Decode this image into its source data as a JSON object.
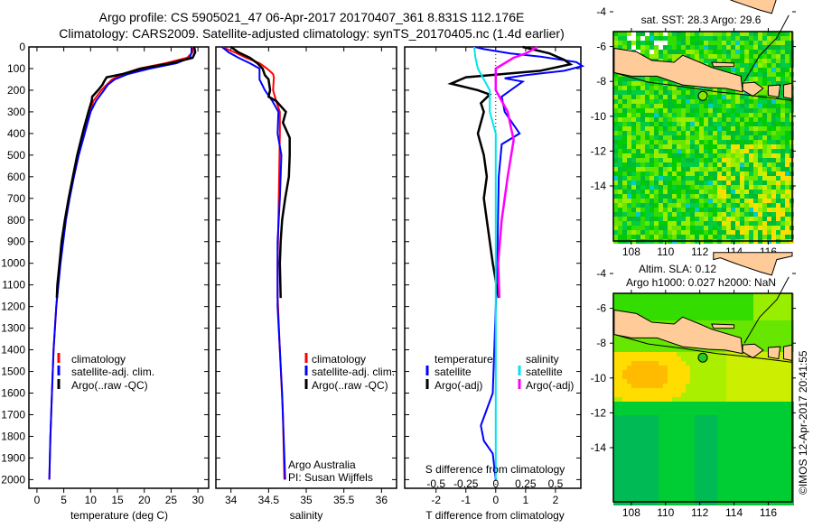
{
  "title_line1": "Argo profile: CS 5905021_47 06-Apr-2017 20170407_361 8.831S 112.176E",
  "title_line2": "Climatology: CARS2009. Satellite-adjusted climatology: synTS_20170405.nc (1.4d earlier)",
  "colors": {
    "climatology": "#ff0000",
    "satellite": "#0000ff",
    "argo": "#000000",
    "s_satellite": "#00e5ee",
    "s_argo": "#ff00ff",
    "land": "#ffcc99"
  },
  "chart_data": [
    {
      "type": "line",
      "name": "temperature profile",
      "xlabel": "temperature (deg C)",
      "ylabel": "",
      "xlim": [
        -1.5,
        32
      ],
      "ylim": [
        2040,
        0
      ],
      "xticks": [
        "0",
        "5",
        "10",
        "15",
        "20",
        "25",
        "30"
      ],
      "yticks": [
        "0",
        "100",
        "200",
        "300",
        "400",
        "500",
        "600",
        "700",
        "800",
        "900",
        "1000",
        "1100",
        "1200",
        "1300",
        "1400",
        "1500",
        "1600",
        "1700",
        "1800",
        "1900",
        "2000"
      ],
      "legend": [
        "climatology",
        "satellite-adj. clim.",
        "Argo(..raw -QC)"
      ],
      "series": [
        {
          "name": "climatology",
          "color": "#ff0000",
          "depth": [
            0,
            25,
            50,
            75,
            100,
            125,
            150,
            175,
            200,
            250,
            300,
            400,
            500,
            600,
            700,
            800,
            900,
            1000,
            1100,
            1200,
            1400,
            1600,
            1800,
            2000
          ],
          "values": [
            29,
            29,
            28,
            24,
            19,
            16,
            14,
            13,
            12,
            10.5,
            10,
            8.7,
            7.6,
            6.8,
            6,
            5.3,
            4.8,
            4.3,
            3.9,
            3.6,
            3.1,
            2.8,
            2.5,
            2.3
          ]
        },
        {
          "name": "satellite-adj. clim.",
          "color": "#0000ff",
          "depth": [
            0,
            25,
            50,
            75,
            100,
            125,
            150,
            175,
            200,
            250,
            300,
            400,
            500,
            600,
            700,
            800,
            900,
            1000,
            1100,
            1200,
            1400,
            1600,
            1800,
            2000
          ],
          "values": [
            28.8,
            28.8,
            28.5,
            26,
            21,
            17,
            14.5,
            13.2,
            12.5,
            11,
            10,
            8.9,
            7.8,
            6.9,
            6.1,
            5.4,
            4.9,
            4.4,
            4,
            3.6,
            3.1,
            2.8,
            2.5,
            2.3
          ]
        },
        {
          "name": "Argo(..raw -QC)",
          "color": "#000000",
          "depth": [
            0,
            25,
            50,
            75,
            100,
            125,
            140,
            160,
            175,
            200,
            230,
            250,
            300,
            380,
            400,
            500,
            600,
            700,
            800,
            900,
            1000,
            1100,
            1160
          ],
          "values": [
            29.3,
            29.5,
            29,
            25,
            19.5,
            16,
            13,
            12.5,
            12.2,
            11.4,
            10.3,
            10.2,
            9.6,
            8.7,
            8.5,
            7.5,
            6.7,
            5.9,
            5.2,
            4.6,
            4.2,
            3.8,
            3.7
          ]
        }
      ]
    },
    {
      "type": "line",
      "name": "salinity profile",
      "xlabel": "salinity",
      "xlim": [
        33.8,
        36.2
      ],
      "ylim": [
        2040,
        0
      ],
      "xticks": [
        "34",
        "34.5",
        "35",
        "35.5",
        "36"
      ],
      "legend": [
        "climatology",
        "satellite-adj. clim.",
        "Argo(..raw -QC)"
      ],
      "annotation": [
        "Argo Australia",
        "PI: Susan Wijffels"
      ],
      "series": [
        {
          "name": "climatology",
          "color": "#ff0000",
          "depth": [
            0,
            25,
            50,
            75,
            100,
            125,
            140,
            200,
            250,
            300,
            400,
            600,
            800,
            1000,
            1150,
            1400,
            1700,
            2000
          ],
          "values": [
            33.88,
            34.05,
            34.2,
            34.38,
            34.48,
            34.56,
            34.57,
            34.56,
            34.6,
            34.65,
            34.65,
            34.64,
            34.63,
            34.62,
            34.62,
            34.65,
            34.69,
            34.71
          ]
        },
        {
          "name": "satellite-adj. clim.",
          "color": "#0000ff",
          "depth": [
            0,
            25,
            50,
            75,
            100,
            150,
            200,
            250,
            300,
            400,
            500,
            700,
            900,
            1200,
            1600,
            2000
          ],
          "values": [
            33.88,
            33.97,
            34.1,
            34.25,
            34.38,
            34.38,
            34.45,
            34.55,
            34.63,
            34.62,
            34.67,
            34.65,
            34.62,
            34.62,
            34.68,
            34.72
          ]
        },
        {
          "name": "Argo(..raw -QC)",
          "color": "#000000",
          "depth": [
            0,
            25,
            50,
            75,
            100,
            130,
            150,
            200,
            230,
            250,
            300,
            350,
            420,
            500,
            600,
            700,
            800,
            900,
            1000,
            1160
          ],
          "values": [
            34.0,
            34.1,
            34.25,
            34.35,
            34.42,
            34.45,
            34.5,
            34.52,
            34.5,
            34.6,
            34.73,
            34.69,
            34.78,
            34.78,
            34.77,
            34.72,
            34.68,
            34.66,
            34.65,
            34.66
          ]
        }
      ]
    },
    {
      "type": "line",
      "name": "difference from climatology",
      "xlabel": "T difference from climatology",
      "x2label": "S difference from climatology",
      "xlim": [
        -3.05,
        2.85
      ],
      "ylim": [
        2040,
        0
      ],
      "xticks": [
        "-2",
        "-1",
        "0",
        "1",
        "2"
      ],
      "x2ticks": [
        "-0.5",
        "-0.25",
        "0",
        "0.25",
        "0.5"
      ],
      "legend_temperature": {
        "title": "temperature",
        "items": [
          "satellite",
          "Argo(-adj)"
        ]
      },
      "legend_salinity": {
        "title": "salinity",
        "items": [
          "satellite",
          "Argo(-adj)"
        ]
      },
      "series": [
        {
          "name": "T satellite",
          "color": "#0000ff",
          "unit": "T",
          "depth": [
            0,
            10,
            30,
            45,
            70,
            88,
            110,
            130,
            145,
            160,
            200,
            230,
            300,
            400,
            450,
            600,
            1000,
            1600,
            1750,
            1820,
            1880,
            2000
          ],
          "values": [
            -0.7,
            -0.4,
            0.5,
            1.5,
            2.7,
            2.9,
            2.3,
            1.0,
            0.3,
            0.9,
            0.5,
            0.2,
            0.3,
            0.8,
            0.2,
            0.1,
            0.05,
            -0.1,
            -0.5,
            -0.4,
            -0.1,
            0
          ]
        },
        {
          "name": "T Argo(-adj)",
          "color": "#000000",
          "unit": "T",
          "depth": [
            0,
            30,
            60,
            80,
            110,
            140,
            170,
            200,
            220,
            260,
            300,
            400,
            500,
            600,
            700,
            800,
            1000,
            1160
          ],
          "values": [
            0.9,
            1.8,
            2.3,
            2.5,
            1.5,
            -1.0,
            -1.5,
            -0.6,
            -0.2,
            -0.5,
            -0.4,
            -0.6,
            -0.4,
            -0.3,
            -0.4,
            -0.3,
            -0.1,
            0.1
          ]
        },
        {
          "name": "S satellite",
          "color": "#00e5ee",
          "unit": "S",
          "depth": [
            0,
            50,
            100,
            200,
            300,
            400,
            1000,
            2000
          ],
          "values": [
            -0.18,
            -0.17,
            -0.15,
            -0.05,
            -0.05,
            0,
            0,
            0
          ]
        },
        {
          "name": "S Argo(-adj)",
          "color": "#ff00ff",
          "unit": "S",
          "depth": [
            0,
            30,
            50,
            100,
            200,
            300,
            430,
            600,
            800,
            1000,
            1160
          ],
          "values": [
            0.35,
            0.25,
            0.15,
            0,
            0,
            0.1,
            0.15,
            0.1,
            0.05,
            0.02,
            0.03
          ]
        }
      ]
    }
  ],
  "maps": {
    "sst": {
      "title": "sat. SST: 28.3 Argo: 29.6"
    },
    "sla": {
      "title1": "Altim. SLA: 0.12",
      "title2": "Argo h1000: 0.027 h2000: NaN"
    },
    "lon_ticks": [
      "108",
      "110",
      "112",
      "114",
      "116"
    ],
    "lat_ticks": [
      "-4",
      "-6",
      "-8",
      "-10",
      "-12",
      "-14"
    ],
    "argo_position": {
      "lon": 112.176,
      "lat": -8.831
    }
  },
  "copyright": "©IMOS 12-Apr-2017 20:41:55"
}
